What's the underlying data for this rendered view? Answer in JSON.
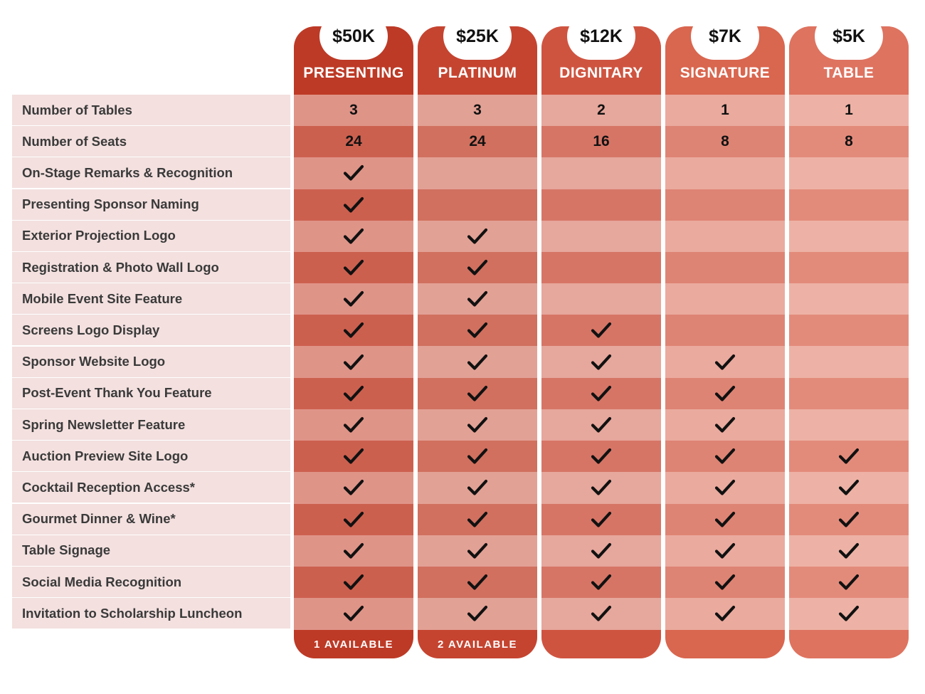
{
  "tiers": [
    {
      "price": "$50K",
      "name": "PRESENTING",
      "footer": "1 AVAILABLE",
      "colors": {
        "head": "#bd3a26",
        "row_a": "#df9488",
        "row_b": "#cc604f",
        "foot": "#bd3a26"
      }
    },
    {
      "price": "$25K",
      "name": "PLATINUM",
      "footer": "2 AVAILABLE",
      "colors": {
        "head": "#c54430",
        "row_a": "#e2a195",
        "row_b": "#d1705f",
        "foot": "#c54430"
      }
    },
    {
      "price": "$12K",
      "name": "DIGNITARY",
      "footer": "",
      "colors": {
        "head": "#cf5440",
        "row_a": "#e6a79c",
        "row_b": "#d67566",
        "foot": "#cf5440"
      }
    },
    {
      "price": "$7K",
      "name": "SIGNATURE",
      "footer": "",
      "colors": {
        "head": "#d9664f",
        "row_a": "#eaaa9e",
        "row_b": "#de8474",
        "foot": "#d9664f"
      }
    },
    {
      "price": "$5K",
      "name": "TABLE",
      "footer": "",
      "colors": {
        "head": "#de7360",
        "row_a": "#edb2a5",
        "row_b": "#e38b7b",
        "foot": "#de7360"
      }
    }
  ],
  "rows": [
    {
      "label": "Number of Tables",
      "values": [
        "3",
        "3",
        "2",
        "1",
        "1"
      ]
    },
    {
      "label": "Number of Seats",
      "values": [
        "24",
        "24",
        "16",
        "8",
        "8"
      ]
    },
    {
      "label": "On-Stage Remarks & Recognition",
      "values": [
        true,
        false,
        false,
        false,
        false
      ]
    },
    {
      "label": "Presenting Sponsor Naming",
      "values": [
        true,
        false,
        false,
        false,
        false
      ]
    },
    {
      "label": "Exterior Projection Logo",
      "values": [
        true,
        true,
        false,
        false,
        false
      ]
    },
    {
      "label": "Registration & Photo Wall Logo",
      "values": [
        true,
        true,
        false,
        false,
        false
      ]
    },
    {
      "label": "Mobile Event Site Feature",
      "values": [
        true,
        true,
        false,
        false,
        false
      ]
    },
    {
      "label": "Screens Logo Display",
      "values": [
        true,
        true,
        true,
        false,
        false
      ]
    },
    {
      "label": "Sponsor Website Logo",
      "values": [
        true,
        true,
        true,
        true,
        false
      ]
    },
    {
      "label": "Post-Event Thank You Feature",
      "values": [
        true,
        true,
        true,
        true,
        false
      ]
    },
    {
      "label": "Spring Newsletter Feature",
      "values": [
        true,
        true,
        true,
        true,
        false
      ]
    },
    {
      "label": "Auction Preview Site Logo",
      "values": [
        true,
        true,
        true,
        true,
        true
      ]
    },
    {
      "label": "Cocktail Reception Access*",
      "values": [
        true,
        true,
        true,
        true,
        true
      ]
    },
    {
      "label": "Gourmet Dinner & Wine*",
      "values": [
        true,
        true,
        true,
        true,
        true
      ]
    },
    {
      "label": "Table Signage",
      "values": [
        true,
        true,
        true,
        true,
        true
      ]
    },
    {
      "label": "Social Media Recognition",
      "values": [
        true,
        true,
        true,
        true,
        true
      ]
    },
    {
      "label": "Invitation to Scholarship Luncheon",
      "values": [
        true,
        true,
        true,
        true,
        true
      ]
    }
  ],
  "icons": {
    "included": "checkmark-icon"
  },
  "colors": {
    "label_bg": "#f3e0df",
    "label_text": "#3a3a3a",
    "pill_bg": "#ffffff"
  }
}
